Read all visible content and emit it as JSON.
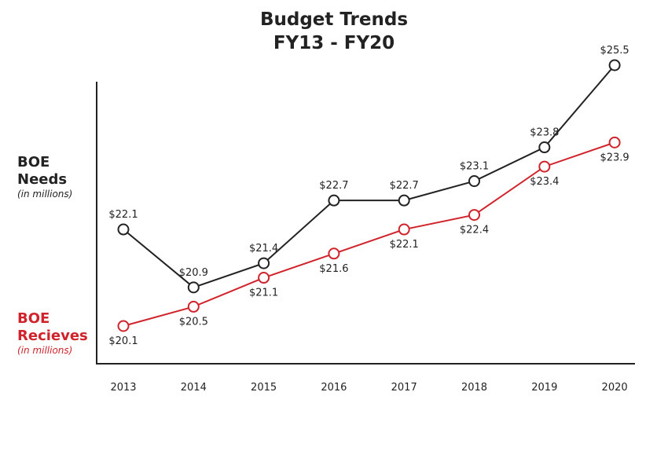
{
  "title_line1": "Budget Trends",
  "title_line2": "FY13 - FY20",
  "needs_label": {
    "line1": "BOE",
    "line2": "Needs",
    "unit": "(in millions)"
  },
  "receives_label": {
    "line1": "BOE",
    "line2": "Recieves",
    "unit": "(in millions)"
  },
  "colors": {
    "needs": "#222222",
    "receives": "#d0232b",
    "axis": "#222222"
  },
  "chart_data": {
    "type": "line",
    "title": "Budget Trends FY13 - FY20",
    "x": [
      "2013",
      "2014",
      "2015",
      "2016",
      "2017",
      "2018",
      "2019",
      "2020"
    ],
    "series": [
      {
        "name": "BOE Needs",
        "values": [
          22.1,
          20.9,
          21.4,
          22.7,
          22.7,
          23.1,
          23.8,
          25.5
        ],
        "labels": [
          "$22.1",
          "$20.9",
          "$21.4",
          "$22.7",
          "$22.7",
          "$23.1",
          "$23.8",
          "$25.5"
        ]
      },
      {
        "name": "BOE Recieves",
        "values": [
          20.1,
          20.5,
          21.1,
          21.6,
          22.1,
          22.4,
          23.4,
          23.9
        ],
        "labels": [
          "$20.1",
          "$20.5",
          "$21.1",
          "$21.6",
          "$22.1",
          "$22.4",
          "$23.4",
          "$23.9"
        ]
      }
    ],
    "grid": false,
    "markers": "open-circle"
  }
}
